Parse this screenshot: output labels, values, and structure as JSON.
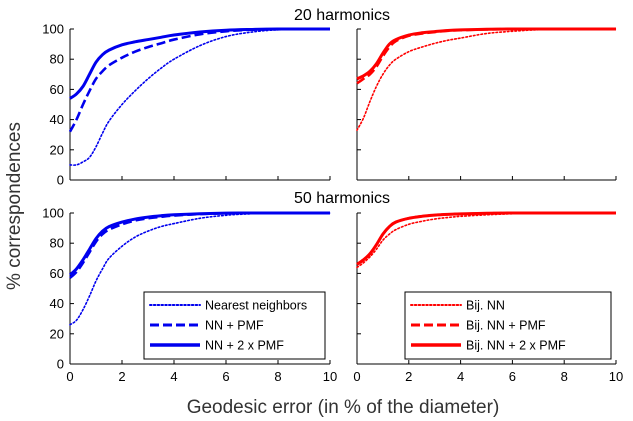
{
  "figure": {
    "xlabel": "Geodesic error (in % of the diameter)",
    "ylabel": "% correspondences",
    "row_titles": [
      "20 harmonics",
      "50 harmonics"
    ]
  },
  "chart_data": [
    {
      "type": "line",
      "panel": "top-left",
      "title": "20 harmonics",
      "xlim": [
        0,
        10
      ],
      "ylim": [
        0,
        100
      ],
      "xticks": [],
      "yticks": [
        0,
        20,
        40,
        60,
        80,
        100
      ],
      "grid": false,
      "x": [
        0,
        0.25,
        0.5,
        0.75,
        1,
        1.25,
        1.5,
        2,
        2.5,
        3,
        3.5,
        4,
        5,
        6,
        7,
        8,
        9,
        10
      ],
      "series": [
        {
          "name": "Nearest neighbors",
          "color": "#0000ee",
          "style": "dotted",
          "values": [
            10,
            10,
            12,
            15,
            22,
            31,
            39,
            50,
            59,
            67,
            74,
            80,
            89,
            95,
            98,
            99.5,
            99.9,
            100
          ]
        },
        {
          "name": "NN + PMF",
          "color": "#0000ee",
          "style": "dashed",
          "values": [
            32,
            40,
            50,
            59,
            67,
            72,
            76,
            81,
            85,
            88,
            90.5,
            93,
            96.5,
            98.5,
            99.5,
            99.8,
            100,
            100
          ]
        },
        {
          "name": "NN + 2 x PMF",
          "color": "#0000ee",
          "style": "solid",
          "values": [
            54,
            57,
            62,
            70,
            78,
            83,
            86,
            89.5,
            91.5,
            93,
            94.5,
            96,
            98,
            99.2,
            99.7,
            100,
            100,
            100
          ]
        }
      ]
    },
    {
      "type": "line",
      "panel": "top-right",
      "xlim": [
        0,
        10
      ],
      "ylim": [
        0,
        100
      ],
      "xticks": [],
      "yticks": [],
      "grid": false,
      "x": [
        0,
        0.25,
        0.5,
        0.75,
        1,
        1.25,
        1.5,
        2,
        2.5,
        3,
        3.5,
        4,
        5,
        6,
        7,
        8,
        9,
        10
      ],
      "series": [
        {
          "name": "Bij. NN",
          "color": "#ff0000",
          "style": "dotted",
          "values": [
            33,
            41,
            52,
            62,
            70,
            76,
            80,
            85,
            88,
            90.5,
            92.5,
            94,
            97,
            98.5,
            99.5,
            99.8,
            100,
            100
          ]
        },
        {
          "name": "Bij. NN + PMF",
          "color": "#ff0000",
          "style": "dashed",
          "values": [
            64,
            67,
            70,
            75,
            82,
            88,
            92,
            95.5,
            97,
            98,
            98.8,
            99.2,
            99.7,
            100,
            100,
            100,
            100,
            100
          ]
        },
        {
          "name": "Bij. NN + 2 x PMF",
          "color": "#ff0000",
          "style": "solid",
          "values": [
            67,
            69,
            72,
            77,
            84,
            90,
            93,
            96,
            97.5,
            98.3,
            99,
            99.4,
            99.8,
            100,
            100,
            100,
            100,
            100
          ]
        }
      ]
    },
    {
      "type": "line",
      "panel": "bottom-left",
      "title": "50 harmonics",
      "xlim": [
        0,
        10
      ],
      "ylim": [
        0,
        100
      ],
      "xticks": [
        0,
        2,
        4,
        6,
        8,
        10
      ],
      "yticks": [
        0,
        20,
        40,
        60,
        80,
        100
      ],
      "grid": false,
      "legend": "bottom-right",
      "x": [
        0,
        0.25,
        0.5,
        0.75,
        1,
        1.25,
        1.5,
        2,
        2.5,
        3,
        3.5,
        4,
        5,
        6,
        7,
        8,
        9,
        10
      ],
      "series": [
        {
          "name": "Nearest neighbors",
          "color": "#0000ee",
          "style": "dotted",
          "values": [
            26,
            29,
            36,
            45,
            55,
            63,
            70,
            78,
            84,
            88,
            91,
            93,
            96.5,
            98.5,
            99.5,
            99.8,
            100,
            100
          ]
        },
        {
          "name": "NN + PMF",
          "color": "#0000ee",
          "style": "dashed",
          "values": [
            57,
            61,
            67,
            74,
            81,
            86,
            89,
            92.5,
            95,
            96.5,
            97.5,
            98.3,
            99.3,
            99.8,
            100,
            100,
            100,
            100
          ]
        },
        {
          "name": "NN + 2 x PMF",
          "color": "#0000ee",
          "style": "solid",
          "values": [
            59,
            63,
            69,
            76,
            83,
            88,
            91,
            94,
            96,
            97.3,
            98.2,
            98.8,
            99.5,
            99.9,
            100,
            100,
            100,
            100
          ]
        }
      ]
    },
    {
      "type": "line",
      "panel": "bottom-right",
      "xlim": [
        0,
        10
      ],
      "ylim": [
        0,
        100
      ],
      "xticks": [
        0,
        2,
        4,
        6,
        8,
        10
      ],
      "yticks": [],
      "grid": false,
      "legend": "bottom-right",
      "x": [
        0,
        0.25,
        0.5,
        0.75,
        1,
        1.25,
        1.5,
        2,
        2.5,
        3,
        3.5,
        4,
        5,
        6,
        7,
        8,
        9,
        10
      ],
      "series": [
        {
          "name": "Bij. NN",
          "color": "#ff0000",
          "style": "dotted",
          "values": [
            64,
            67,
            71,
            76,
            82,
            86,
            89,
            92.5,
            94.5,
            96,
            97,
            97.8,
            98.8,
            99.5,
            99.8,
            100,
            100,
            100
          ]
        },
        {
          "name": "Bij. NN + PMF",
          "color": "#ff0000",
          "style": "dashed",
          "values": [
            66,
            69,
            73,
            79,
            86,
            91,
            94,
            96.5,
            97.8,
            98.6,
            99.1,
            99.4,
            99.8,
            100,
            100,
            100,
            100,
            100
          ]
        },
        {
          "name": "Bij. NN + 2 x PMF",
          "color": "#ff0000",
          "style": "solid",
          "values": [
            66,
            69,
            73,
            79,
            86,
            91,
            94,
            96.5,
            97.8,
            98.6,
            99.1,
            99.4,
            99.8,
            100,
            100,
            100,
            100,
            100
          ]
        }
      ]
    }
  ],
  "legends": [
    {
      "panel_index": 2,
      "entries": [
        "Nearest neighbors",
        "NN + PMF",
        "NN + 2 x PMF"
      ],
      "color": "#0000ee"
    },
    {
      "panel_index": 3,
      "entries": [
        "Bij. NN",
        "Bij. NN + PMF",
        "Bij. NN + 2 x PMF"
      ],
      "color": "#ff0000"
    }
  ]
}
